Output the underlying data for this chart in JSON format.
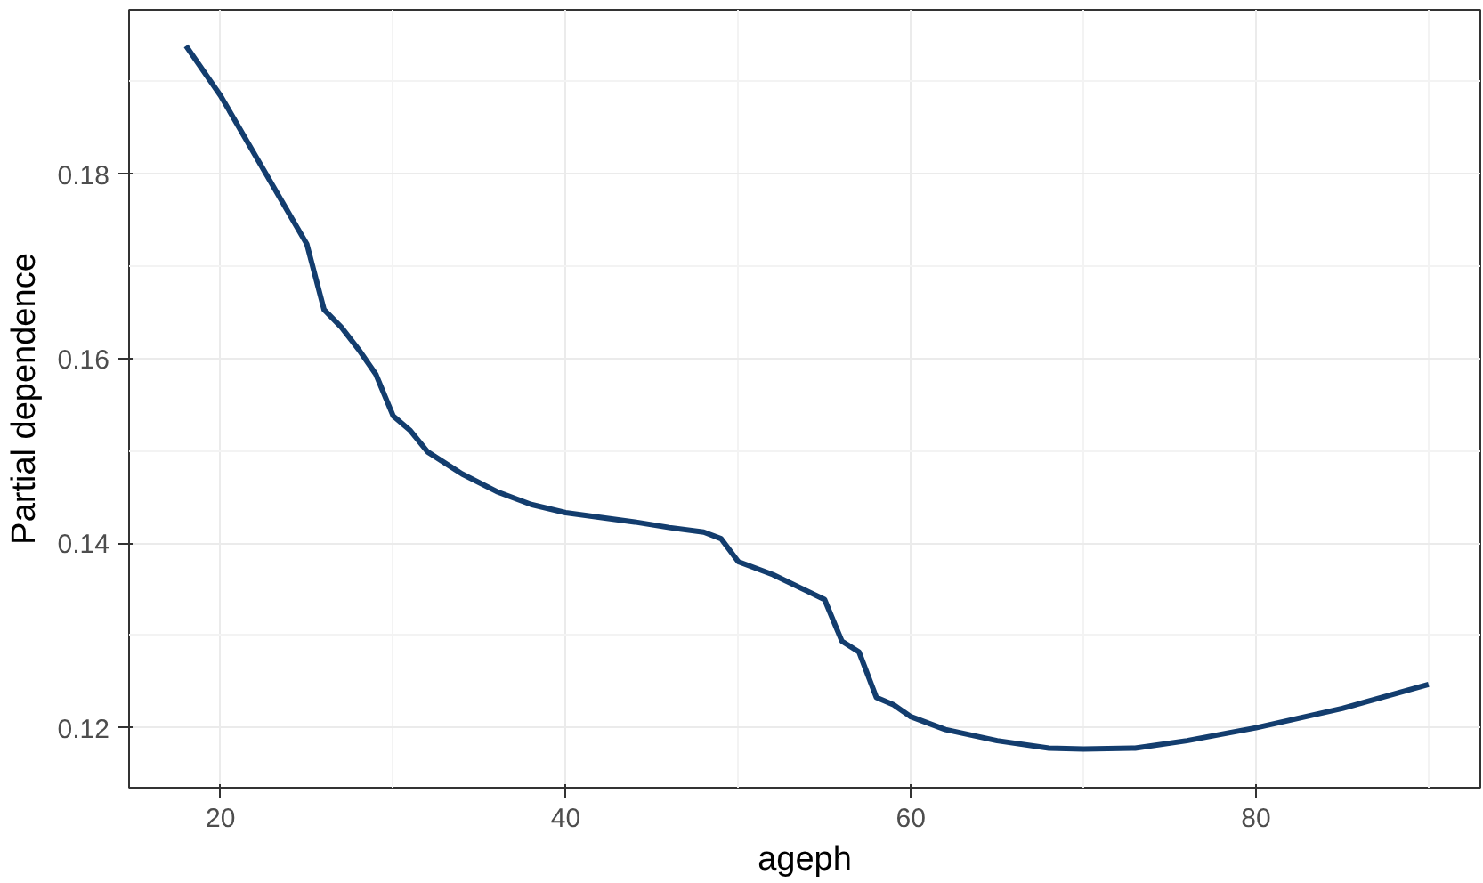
{
  "chart_data": {
    "type": "line",
    "xlabel": "ageph",
    "ylabel": "Partial dependence",
    "x": [
      18,
      20,
      25,
      26,
      27,
      28,
      29,
      30,
      31,
      32,
      34,
      36,
      38,
      40,
      44,
      46,
      48,
      49,
      50,
      52,
      54,
      55,
      56,
      57,
      58,
      59,
      60,
      62,
      65,
      68,
      70,
      73,
      76,
      80,
      85,
      90
    ],
    "series": [
      {
        "color": "#133d6e",
        "values": [
          0.1939,
          0.1885,
          0.1724,
          0.1653,
          0.1634,
          0.161,
          0.1583,
          0.1538,
          0.1522,
          0.1499,
          0.1475,
          0.1456,
          0.1442,
          0.1433,
          0.1423,
          0.1417,
          0.1412,
          0.1405,
          0.138,
          0.1366,
          0.1348,
          0.1339,
          0.1294,
          0.1282,
          0.1233,
          0.1225,
          0.1212,
          0.1198,
          0.1186,
          0.1178,
          0.1177,
          0.1178,
          0.1186,
          0.12,
          0.1221,
          0.1247
        ]
      }
    ],
    "xlim": [
      14.7,
      93
    ],
    "ylim": [
      0.1135,
      0.1978
    ],
    "xticks": [
      20,
      40,
      60,
      80
    ],
    "yticks": [
      {
        "value": 0.12,
        "label": "0.12"
      },
      {
        "value": 0.14,
        "label": "0.14"
      },
      {
        "value": 0.16,
        "label": "0.16"
      },
      {
        "value": 0.18,
        "label": "0.18"
      }
    ],
    "grid": true,
    "line_style": "solid",
    "marker": "none"
  }
}
